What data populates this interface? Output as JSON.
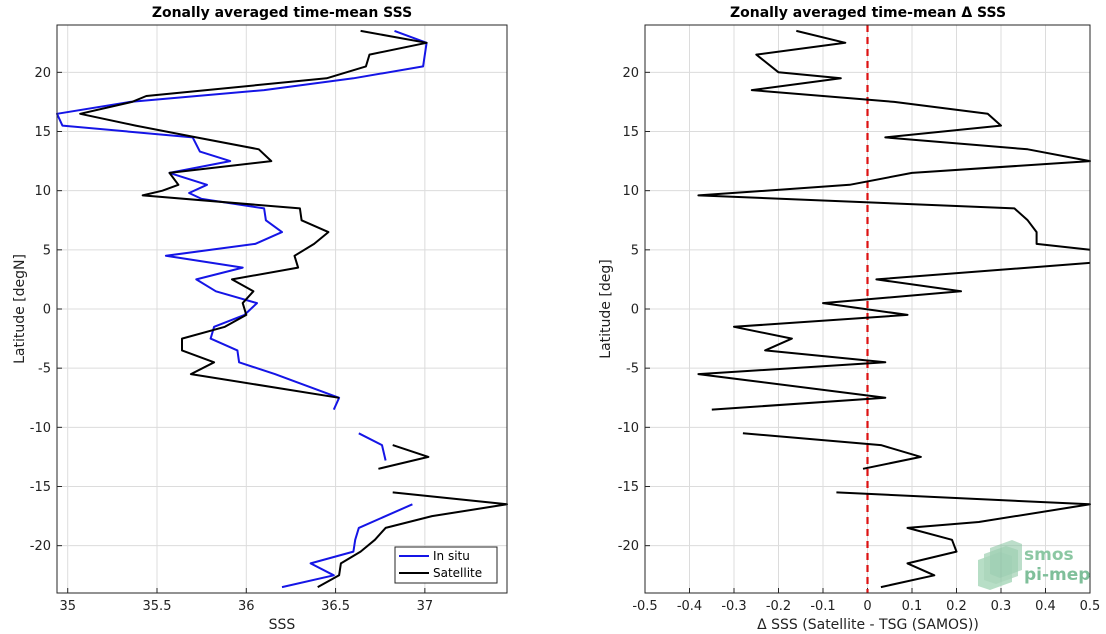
{
  "chart_data": [
    {
      "type": "line",
      "title": "Zonally averaged time-mean SSS",
      "xlabel": "SSS",
      "ylabel": "Latitude [degN]",
      "xlim": [
        34.94,
        37.46
      ],
      "ylim": [
        -24,
        24
      ],
      "xticks": [
        35,
        35.5,
        36,
        36.5,
        37
      ],
      "xtick_labels": [
        "35",
        "35.5",
        "36",
        "36.5",
        "37"
      ],
      "yticks": [
        -20,
        -15,
        -10,
        -5,
        0,
        5,
        10,
        15,
        20
      ],
      "ytick_labels": [
        "-20",
        "-15",
        "-10",
        "-5",
        "0",
        "5",
        "10",
        "15",
        "20"
      ],
      "grid": true,
      "legend": "bottom-right",
      "series": [
        {
          "name": "In situ",
          "color": "#1515e6",
          "segments": [
            [
              [
                36.83,
                23.5
              ],
              [
                37.01,
                22.5
              ],
              [
                36.99,
                20.5
              ],
              [
                36.6,
                19.5
              ],
              [
                36.1,
                18.5
              ],
              [
                35.35,
                17.5
              ],
              [
                34.94,
                16.5
              ],
              [
                34.97,
                15.5
              ],
              [
                35.7,
                14.5
              ],
              [
                35.74,
                13.3
              ],
              [
                35.91,
                12.5
              ],
              [
                35.57,
                11.5
              ],
              [
                35.78,
                10.5
              ],
              [
                35.68,
                9.8
              ],
              [
                35.75,
                9.3
              ],
              [
                36.1,
                8.5
              ],
              [
                36.11,
                7.5
              ],
              [
                36.2,
                6.5
              ],
              [
                36.05,
                5.5
              ],
              [
                35.55,
                4.5
              ],
              [
                35.98,
                3.5
              ],
              [
                35.72,
                2.5
              ],
              [
                35.83,
                1.5
              ],
              [
                36.06,
                0.5
              ],
              [
                35.99,
                -0.5
              ],
              [
                35.82,
                -1.5
              ],
              [
                35.8,
                -2.5
              ],
              [
                35.95,
                -3.5
              ],
              [
                35.96,
                -4.5
              ],
              [
                36.16,
                -5.5
              ],
              [
                36.52,
                -7.5
              ],
              [
                36.49,
                -8.5
              ]
            ],
            [
              [
                36.63,
                -10.5
              ],
              [
                36.76,
                -11.5
              ],
              [
                36.78,
                -12.8
              ]
            ],
            [
              [
                36.93,
                -16.5
              ],
              [
                36.63,
                -18.5
              ],
              [
                36.61,
                -19.5
              ],
              [
                36.6,
                -20.5
              ],
              [
                36.36,
                -21.5
              ],
              [
                36.49,
                -22.5
              ],
              [
                36.2,
                -23.5
              ]
            ]
          ]
        },
        {
          "name": "Satellite",
          "color": "#000000",
          "segments": [
            [
              [
                36.64,
                23.5
              ],
              [
                37.01,
                22.5
              ],
              [
                36.69,
                21.5
              ],
              [
                36.67,
                20.5
              ],
              [
                36.45,
                19.5
              ],
              [
                35.44,
                18.0
              ],
              [
                35.36,
                17.5
              ],
              [
                35.07,
                16.5
              ],
              [
                35.38,
                15.5
              ],
              [
                35.72,
                14.5
              ],
              [
                36.07,
                13.5
              ],
              [
                36.14,
                12.5
              ],
              [
                35.57,
                11.5
              ],
              [
                35.62,
                10.5
              ],
              [
                35.53,
                10.0
              ],
              [
                35.42,
                9.6
              ],
              [
                36.3,
                8.5
              ],
              [
                36.31,
                7.5
              ],
              [
                36.46,
                6.5
              ],
              [
                36.38,
                5.5
              ],
              [
                36.27,
                4.5
              ],
              [
                36.29,
                3.5
              ],
              [
                35.92,
                2.5
              ],
              [
                36.04,
                1.5
              ],
              [
                35.98,
                0.5
              ],
              [
                36.0,
                -0.5
              ],
              [
                35.88,
                -1.5
              ],
              [
                35.64,
                -2.5
              ],
              [
                35.64,
                -3.5
              ],
              [
                35.82,
                -4.5
              ],
              [
                35.69,
                -5.5
              ],
              [
                36.52,
                -7.5
              ]
            ],
            [
              [
                36.82,
                -11.5
              ],
              [
                37.02,
                -12.5
              ],
              [
                36.74,
                -13.5
              ]
            ],
            [
              [
                36.82,
                -15.5
              ],
              [
                37.46,
                -16.5
              ],
              [
                37.04,
                -17.5
              ],
              [
                36.78,
                -18.5
              ],
              [
                36.72,
                -19.5
              ],
              [
                36.64,
                -20.5
              ],
              [
                36.53,
                -21.5
              ],
              [
                36.52,
                -22.5
              ],
              [
                36.4,
                -23.5
              ]
            ]
          ]
        }
      ]
    },
    {
      "type": "line",
      "title": "Zonally averaged time-mean Δ SSS",
      "xlabel": "Δ SSS (Satellite - TSG (SAMOS))",
      "ylabel": "Latitude [deg]",
      "xlim": [
        -0.5,
        0.5
      ],
      "ylim": [
        -24,
        24
      ],
      "xticks": [
        -0.5,
        -0.4,
        -0.3,
        -0.2,
        -0.1,
        0,
        0.1,
        0.2,
        0.3,
        0.4,
        0.5
      ],
      "xtick_labels": [
        "-0.5",
        "-0.4",
        "-0.3",
        "-0.2",
        "-0.1",
        "0",
        "0.1",
        "0.2",
        "0.3",
        "0.4",
        "0.5"
      ],
      "yticks": [
        -20,
        -15,
        -10,
        -5,
        0,
        5,
        10,
        15,
        20
      ],
      "ytick_labels": [
        "-20",
        "-15",
        "-10",
        "-5",
        "0",
        "5",
        "10",
        "15",
        "20"
      ],
      "grid": true,
      "reference_line": {
        "x": 0,
        "color": "#dd1111",
        "style": "dashed"
      },
      "series": [
        {
          "name": "",
          "color": "#000000",
          "segments": [
            [
              [
                -0.16,
                23.5
              ],
              [
                -0.05,
                22.5
              ],
              [
                -0.25,
                21.5
              ],
              [
                -0.2,
                20.0
              ],
              [
                -0.06,
                19.5
              ],
              [
                -0.26,
                18.5
              ],
              [
                0.06,
                17.5
              ],
              [
                0.27,
                16.5
              ],
              [
                0.3,
                15.5
              ],
              [
                0.04,
                14.5
              ],
              [
                0.36,
                13.5
              ],
              [
                0.5,
                12.5
              ],
              [
                0.1,
                11.5
              ],
              [
                -0.04,
                10.5
              ],
              [
                -0.38,
                9.6
              ],
              [
                0.33,
                8.5
              ],
              [
                0.36,
                7.5
              ],
              [
                0.38,
                6.5
              ],
              [
                0.38,
                5.5
              ],
              [
                0.5,
                5.0
              ]
            ],
            [
              [
                0.5,
                3.9
              ],
              [
                0.02,
                2.5
              ],
              [
                0.21,
                1.5
              ],
              [
                -0.1,
                0.5
              ],
              [
                0.09,
                -0.5
              ],
              [
                -0.3,
                -1.5
              ],
              [
                -0.17,
                -2.5
              ],
              [
                -0.23,
                -3.5
              ],
              [
                0.04,
                -4.5
              ],
              [
                -0.38,
                -5.5
              ],
              [
                0.04,
                -7.5
              ],
              [
                -0.35,
                -8.5
              ]
            ],
            [
              [
                -0.28,
                -10.5
              ],
              [
                0.03,
                -11.5
              ],
              [
                0.12,
                -12.5
              ],
              [
                -0.01,
                -13.5
              ]
            ],
            [
              [
                -0.07,
                -15.5
              ],
              [
                0.5,
                -16.5
              ],
              [
                0.25,
                -18.0
              ],
              [
                0.09,
                -18.5
              ],
              [
                0.19,
                -19.5
              ],
              [
                0.2,
                -20.5
              ],
              [
                0.09,
                -21.5
              ],
              [
                0.15,
                -22.5
              ],
              [
                0.03,
                -23.5
              ]
            ]
          ]
        }
      ]
    }
  ],
  "legend": {
    "entries": [
      {
        "label": "In situ",
        "color": "#1515e6"
      },
      {
        "label": "Satellite",
        "color": "#000000"
      }
    ]
  },
  "watermark": {
    "line1": "smos",
    "line2": "pi-mep",
    "color": "#7fbf9a"
  }
}
